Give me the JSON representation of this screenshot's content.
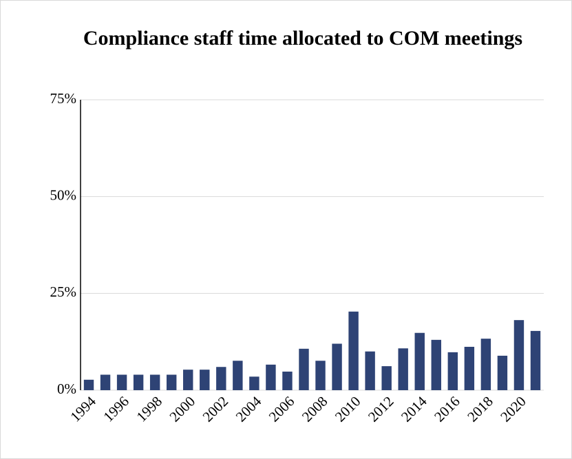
{
  "chart_data": {
    "type": "bar",
    "title": "Compliance staff time allocated to COM meetings",
    "categories": [
      "1994",
      null,
      "1996",
      null,
      "1998",
      null,
      "2000",
      null,
      "2002",
      null,
      "2004",
      null,
      "2006",
      null,
      "2008",
      null,
      "2010",
      null,
      "2012",
      null,
      "2014",
      null,
      "2016",
      null,
      "2018",
      null,
      "2020",
      null
    ],
    "values": [
      2.7,
      4,
      4,
      4,
      4,
      4,
      5.3,
      5.3,
      6,
      7.6,
      3.5,
      6.6,
      4.8,
      10.7,
      7.6,
      12,
      20.3,
      10,
      6.2,
      10.8,
      14.8,
      13,
      9.8,
      11.2,
      13.3,
      8.9,
      18.1,
      15.3
    ],
    "color": "#2e4375",
    "ylim": [
      0,
      75
    ],
    "yticks": [
      {
        "value": 0,
        "label": "0%"
      },
      {
        "value": 25,
        "label": "25%"
      },
      {
        "value": 50,
        "label": "50%"
      },
      {
        "value": 75,
        "label": "75%"
      }
    ],
    "grid": true
  }
}
